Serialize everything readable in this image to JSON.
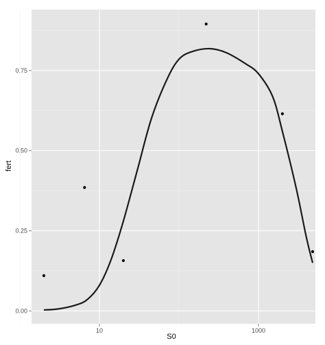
{
  "chart_data": {
    "type": "scatter",
    "x_scale": "log10",
    "xlabel": "S0",
    "ylabel": "fert",
    "xlim": [
      1.4,
      5200
    ],
    "ylim": [
      -0.04,
      0.94
    ],
    "x_ticks": [
      10,
      1000
    ],
    "x_tick_labels": [
      "10",
      "1000"
    ],
    "x_minor_ticks": [
      1,
      100
    ],
    "y_ticks": [
      0,
      0.25,
      0.5,
      0.75
    ],
    "y_tick_labels": [
      "0.00",
      "0.25",
      "0.50",
      "0.75"
    ],
    "y_minor_ticks": [
      0.125,
      0.375,
      0.625,
      0.875
    ],
    "points": [
      {
        "x": 2.0,
        "y": 0.11
      },
      {
        "x": 6.5,
        "y": 0.385
      },
      {
        "x": 20,
        "y": 0.157
      },
      {
        "x": 220,
        "y": 0.895
      },
      {
        "x": 2000,
        "y": 0.615
      },
      {
        "x": 4800,
        "y": 0.185
      }
    ],
    "smooth_line": [
      {
        "x": 2.0,
        "y": 0.003
      },
      {
        "x": 3.0,
        "y": 0.006
      },
      {
        "x": 5.0,
        "y": 0.018
      },
      {
        "x": 7.0,
        "y": 0.035
      },
      {
        "x": 10,
        "y": 0.08
      },
      {
        "x": 14,
        "y": 0.16
      },
      {
        "x": 20,
        "y": 0.28
      },
      {
        "x": 30,
        "y": 0.44
      },
      {
        "x": 45,
        "y": 0.6
      },
      {
        "x": 70,
        "y": 0.72
      },
      {
        "x": 100,
        "y": 0.785
      },
      {
        "x": 150,
        "y": 0.81
      },
      {
        "x": 250,
        "y": 0.818
      },
      {
        "x": 400,
        "y": 0.805
      },
      {
        "x": 700,
        "y": 0.77
      },
      {
        "x": 1000,
        "y": 0.74
      },
      {
        "x": 1500,
        "y": 0.67
      },
      {
        "x": 2000,
        "y": 0.56
      },
      {
        "x": 3000,
        "y": 0.38
      },
      {
        "x": 4000,
        "y": 0.23
      },
      {
        "x": 4800,
        "y": 0.15
      }
    ],
    "colors": {
      "panel": "#e5e5e5",
      "grid_major": "#ffffff",
      "grid_minor": "#f2f2f2",
      "line": "#1a1a1a",
      "point": "#000000",
      "tick_text": "#4d4d4d",
      "tick_mark": "#7f7f7f"
    }
  }
}
